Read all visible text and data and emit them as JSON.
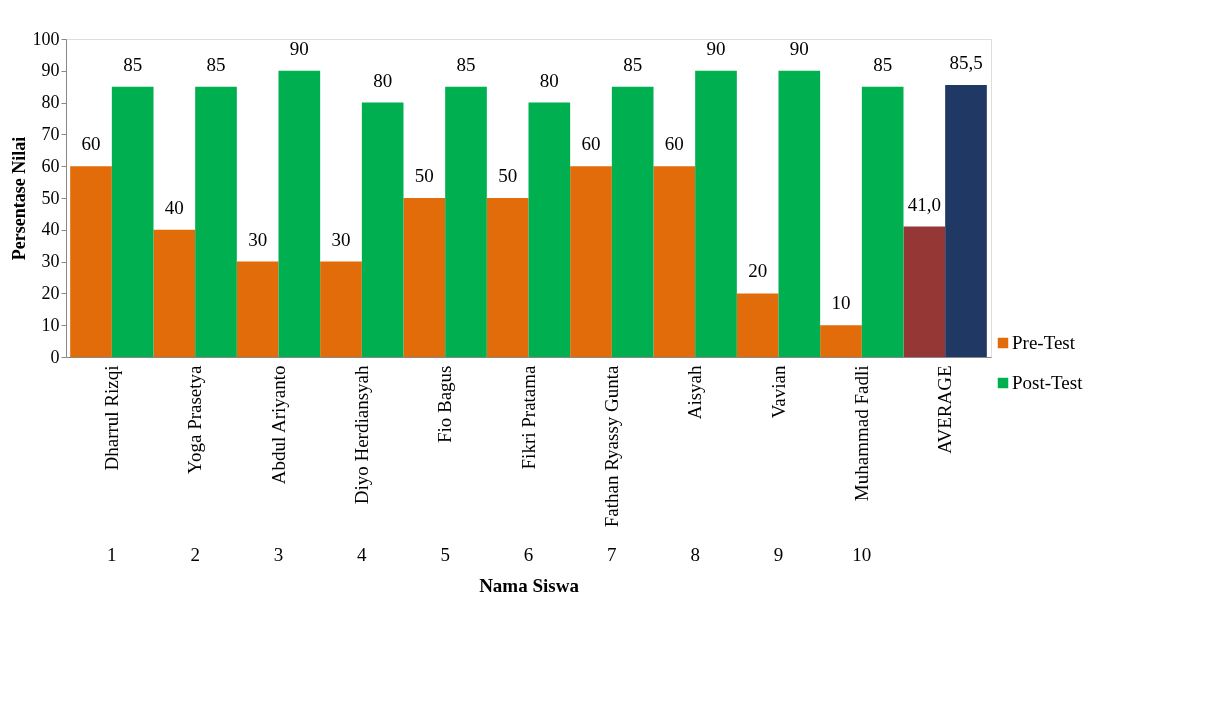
{
  "chart_data": {
    "type": "bar",
    "xlabel": "Nama Siswa",
    "ylabel": "Persentase Nilai",
    "categories": [
      "Dharrul Rizqi",
      "Yoga Prasetya",
      "Abdul Ariyanto",
      "Diyo Herdiansyah",
      "Fio Bagus",
      "Fikri Pratama",
      "Fathan Ryassy Gunta",
      "Aisyah",
      "Vavian",
      "Muhammad Fadli",
      "AVERAGE"
    ],
    "series": [
      {
        "name": "Pre-Test",
        "color": "#e36c0a",
        "colors": [
          "#e36c0a",
          "#e36c0a",
          "#e36c0a",
          "#e36c0a",
          "#e36c0a",
          "#e36c0a",
          "#e36c0a",
          "#e36c0a",
          "#e36c0a",
          "#e36c0a",
          "#953735"
        ],
        "values": [
          60,
          40,
          30,
          30,
          50,
          50,
          60,
          60,
          20,
          10,
          41.0
        ],
        "value_labels": [
          "60",
          "40",
          "30",
          "30",
          "50",
          "50",
          "60",
          "60",
          "20",
          "10",
          "41,0"
        ]
      },
      {
        "name": "Post-Test",
        "color": "#00b050",
        "colors": [
          "#00b050",
          "#00b050",
          "#00b050",
          "#00b050",
          "#00b050",
          "#00b050",
          "#00b050",
          "#00b050",
          "#00b050",
          "#00b050",
          "#1f3864"
        ],
        "values": [
          85,
          85,
          90,
          80,
          85,
          80,
          85,
          90,
          90,
          85,
          85.5
        ],
        "value_labels": [
          "85",
          "85",
          "90",
          "80",
          "85",
          "80",
          "85",
          "90",
          "90",
          "85",
          "85,5"
        ]
      }
    ],
    "ylim": [
      0,
      100
    ],
    "yticks": [
      0,
      10,
      20,
      30,
      40,
      50,
      60,
      70,
      80,
      90,
      100
    ],
    "legend": "right",
    "annotations": [
      "1",
      "2",
      "3",
      "4",
      "5",
      "6",
      "7",
      "8",
      "9",
      "10"
    ]
  }
}
